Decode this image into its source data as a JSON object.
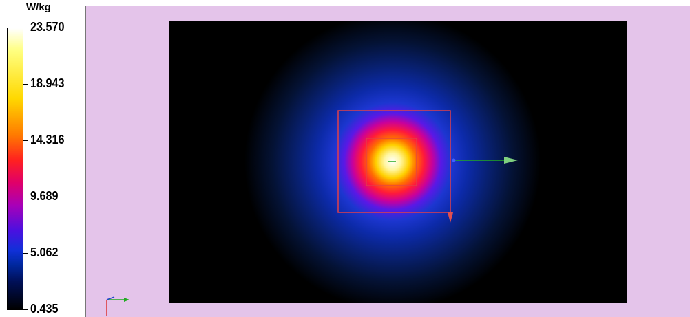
{
  "legend": {
    "unit": "W/kg",
    "ticks": [
      "23.570",
      "18.943",
      "14.316",
      "9.689",
      "5.062",
      "0.435"
    ]
  },
  "colors": {
    "viewport_background": "#e4c4ea",
    "field_background": "#000000",
    "outline": "#e0404a",
    "axis_green": "#22aa22",
    "axis_blue": "#2244cc",
    "axis_red": "#dd3333"
  },
  "icons": {
    "orientation": "xyz-axes-icon",
    "direction_arrow": "arrow-right-icon"
  }
}
